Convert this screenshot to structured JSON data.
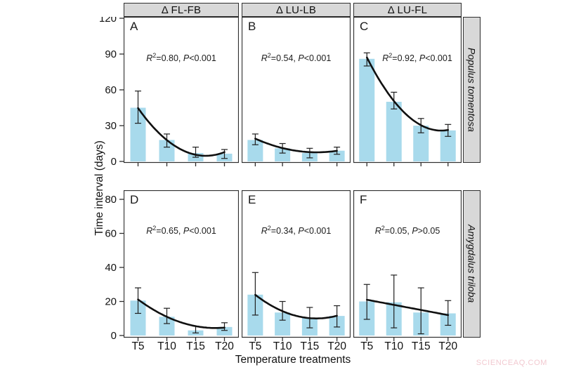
{
  "figure": {
    "y_axis_title": "Time interval (days)",
    "x_axis_title": "Temperature treatments",
    "watermark": "SCIENCEAQ.COM"
  },
  "chart_data": {
    "type": "bar",
    "title": "",
    "categories": [
      "T5",
      "T10",
      "T15",
      "T20"
    ],
    "xlabel": "Temperature treatments",
    "ylabel": "Time interval (days)",
    "column_headers": [
      "Δ FL-FB",
      "Δ LU-LB",
      "Δ LU-FL"
    ],
    "row_headers": [
      "Populus tomentosa",
      "Amygdalus triloba"
    ],
    "row_axes": [
      {
        "ylim": [
          0,
          120
        ],
        "ticks": [
          0,
          30,
          60,
          90,
          120
        ]
      },
      {
        "ylim": [
          0,
          80
        ],
        "ticks": [
          0,
          20,
          40,
          60,
          80
        ]
      }
    ],
    "grid": false,
    "legend": "none",
    "bar_color": "#a8daec",
    "error_bars": true,
    "fit": "quadratic",
    "panels": [
      {
        "letter": "A",
        "row": 0,
        "col": 0,
        "annotation": "R²=0.80, P<0.001",
        "r2": "0.80",
        "p_text": "<0.001",
        "values": [
          45,
          18,
          7,
          6.5
        ],
        "err_low": [
          32,
          12,
          3.5,
          2.5
        ],
        "err_high": [
          59,
          23,
          12,
          10
        ],
        "trend": [
          45,
          17,
          6.5,
          7.5
        ]
      },
      {
        "letter": "B",
        "row": 0,
        "col": 1,
        "annotation": "R²=0.54, P<0.001",
        "r2": "0.54",
        "p_text": "<0.001",
        "values": [
          18,
          11,
          7,
          9
        ],
        "err_low": [
          14,
          7,
          3,
          6
        ],
        "err_high": [
          23,
          15,
          11,
          12
        ],
        "trend": [
          19,
          11.5,
          7.5,
          9
        ]
      },
      {
        "letter": "C",
        "row": 0,
        "col": 2,
        "annotation": "R²=0.92, P<0.001",
        "r2": "0.92",
        "p_text": "<0.001",
        "values": [
          86,
          50,
          30,
          26
        ],
        "err_low": [
          80,
          44,
          24,
          21
        ],
        "err_high": [
          91,
          58,
          36,
          31
        ],
        "trend": [
          87,
          51,
          30,
          26.5
        ]
      },
      {
        "letter": "D",
        "row": 1,
        "col": 0,
        "annotation": "R²=0.65, P<0.001",
        "r2": "0.65",
        "p_text": "<0.001",
        "values": [
          20.5,
          11,
          3,
          5
        ],
        "err_low": [
          13,
          7,
          1.5,
          3
        ],
        "err_high": [
          28,
          16,
          5.5,
          7.5
        ],
        "trend": [
          21,
          11.5,
          5,
          4.8
        ]
      },
      {
        "letter": "E",
        "row": 1,
        "col": 1,
        "annotation": "R²=0.34, P<0.001",
        "r2": "0.34",
        "p_text": "<0.001",
        "values": [
          24,
          13.5,
          10.5,
          11.5
        ],
        "err_low": [
          12,
          9,
          4.5,
          5
        ],
        "err_high": [
          37,
          20,
          16.5,
          17.5
        ],
        "trend": [
          24,
          14,
          10.5,
          11.5
        ]
      },
      {
        "letter": "F",
        "row": 1,
        "col": 2,
        "annotation": "R²=0.05, P>0.05",
        "r2": "0.05",
        "p_text": ">0.05",
        "values": [
          20,
          19.5,
          13.5,
          13
        ],
        "err_low": [
          9.5,
          4.5,
          1,
          6
        ],
        "err_high": [
          30,
          35.5,
          28,
          20.5
        ],
        "trend": [
          21,
          18,
          15,
          12
        ]
      }
    ]
  }
}
